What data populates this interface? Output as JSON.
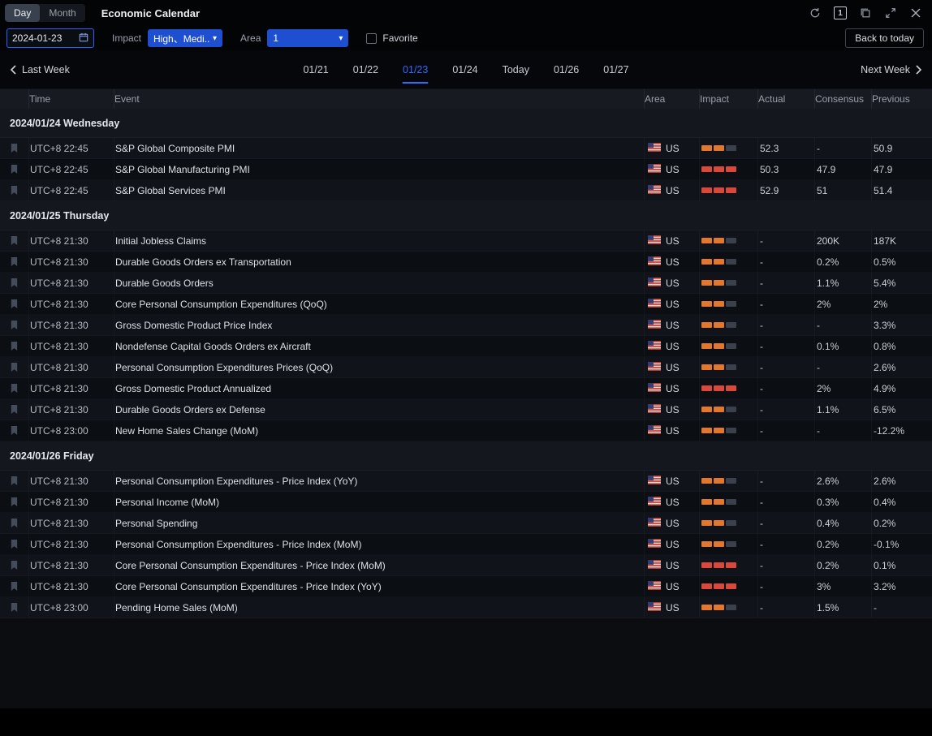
{
  "titlebar": {
    "day_label": "Day",
    "month_label": "Month",
    "title": "Economic Calendar",
    "layout_count": "1"
  },
  "filters": {
    "date_value": "2024-01-23",
    "impact_label": "Impact",
    "impact_value": "High、Medi...",
    "area_label": "Area",
    "area_value": "1",
    "favorite_label": "Favorite",
    "favorite_checked": false,
    "back_to_today_label": "Back to today"
  },
  "week_nav": {
    "prev_label": "Last Week",
    "next_label": "Next Week",
    "tabs": [
      {
        "label": "01/21",
        "active": false
      },
      {
        "label": "01/22",
        "active": false
      },
      {
        "label": "01/23",
        "active": true
      },
      {
        "label": "01/24",
        "active": false
      },
      {
        "label": "Today",
        "active": false
      },
      {
        "label": "01/26",
        "active": false
      },
      {
        "label": "01/27",
        "active": false
      }
    ]
  },
  "icons": {
    "caret_down": "▾"
  },
  "colors": {
    "accent_blue": "#2962FF",
    "dropdown_blue": "#1E4FD1",
    "impact_medium": "#E2772E",
    "impact_high": "#D8493B",
    "impact_empty": "#3A404C"
  },
  "impact_levels": {
    "medium": [
      "#E2772E",
      "#E2772E",
      "#3A404C"
    ],
    "high": [
      "#D8493B",
      "#D8493B",
      "#D8493B"
    ]
  },
  "table": {
    "columns": [
      "Time",
      "Event",
      "Area",
      "Impact",
      "Actual",
      "Consensus",
      "Previous"
    ],
    "sections": [
      {
        "date": "2024/01/24 Wednesday",
        "rows": [
          {
            "time": "UTC+8 22:45",
            "event": "S&P Global Composite PMI",
            "area": "US",
            "impact": "medium",
            "actual": "52.3",
            "consensus": "-",
            "previous": "50.9"
          },
          {
            "time": "UTC+8 22:45",
            "event": "S&P Global Manufacturing PMI",
            "area": "US",
            "impact": "high",
            "actual": "50.3",
            "consensus": "47.9",
            "previous": "47.9"
          },
          {
            "time": "UTC+8 22:45",
            "event": "S&P Global Services PMI",
            "area": "US",
            "impact": "high",
            "actual": "52.9",
            "consensus": "51",
            "previous": "51.4"
          }
        ]
      },
      {
        "date": "2024/01/25 Thursday",
        "rows": [
          {
            "time": "UTC+8 21:30",
            "event": "Initial Jobless Claims",
            "area": "US",
            "impact": "medium",
            "actual": "-",
            "consensus": "200K",
            "previous": "187K"
          },
          {
            "time": "UTC+8 21:30",
            "event": "Durable Goods Orders ex Transportation",
            "area": "US",
            "impact": "medium",
            "actual": "-",
            "consensus": "0.2%",
            "previous": "0.5%"
          },
          {
            "time": "UTC+8 21:30",
            "event": "Durable Goods Orders",
            "area": "US",
            "impact": "medium",
            "actual": "-",
            "consensus": "1.1%",
            "previous": "5.4%"
          },
          {
            "time": "UTC+8 21:30",
            "event": "Core Personal Consumption Expenditures (QoQ)",
            "area": "US",
            "impact": "medium",
            "actual": "-",
            "consensus": "2%",
            "previous": "2%"
          },
          {
            "time": "UTC+8 21:30",
            "event": "Gross Domestic Product Price Index",
            "area": "US",
            "impact": "medium",
            "actual": "-",
            "consensus": "-",
            "previous": "3.3%"
          },
          {
            "time": "UTC+8 21:30",
            "event": "Nondefense Capital Goods Orders ex Aircraft",
            "area": "US",
            "impact": "medium",
            "actual": "-",
            "consensus": "0.1%",
            "previous": "0.8%"
          },
          {
            "time": "UTC+8 21:30",
            "event": "Personal Consumption Expenditures Prices (QoQ)",
            "area": "US",
            "impact": "medium",
            "actual": "-",
            "consensus": "-",
            "previous": "2.6%"
          },
          {
            "time": "UTC+8 21:30",
            "event": "Gross Domestic Product Annualized",
            "area": "US",
            "impact": "high",
            "actual": "-",
            "consensus": "2%",
            "previous": "4.9%"
          },
          {
            "time": "UTC+8 21:30",
            "event": "Durable Goods Orders ex Defense",
            "area": "US",
            "impact": "medium",
            "actual": "-",
            "consensus": "1.1%",
            "previous": "6.5%"
          },
          {
            "time": "UTC+8 23:00",
            "event": "New Home Sales Change (MoM)",
            "area": "US",
            "impact": "medium",
            "actual": "-",
            "consensus": "-",
            "previous": "-12.2%"
          }
        ]
      },
      {
        "date": "2024/01/26 Friday",
        "rows": [
          {
            "time": "UTC+8 21:30",
            "event": "Personal Consumption Expenditures - Price Index (YoY)",
            "area": "US",
            "impact": "medium",
            "actual": "-",
            "consensus": "2.6%",
            "previous": "2.6%"
          },
          {
            "time": "UTC+8 21:30",
            "event": "Personal Income (MoM)",
            "area": "US",
            "impact": "medium",
            "actual": "-",
            "consensus": "0.3%",
            "previous": "0.4%"
          },
          {
            "time": "UTC+8 21:30",
            "event": "Personal Spending",
            "area": "US",
            "impact": "medium",
            "actual": "-",
            "consensus": "0.4%",
            "previous": "0.2%"
          },
          {
            "time": "UTC+8 21:30",
            "event": "Personal Consumption Expenditures - Price Index (MoM)",
            "area": "US",
            "impact": "medium",
            "actual": "-",
            "consensus": "0.2%",
            "previous": "-0.1%"
          },
          {
            "time": "UTC+8 21:30",
            "event": "Core Personal Consumption Expenditures - Price Index (MoM)",
            "area": "US",
            "impact": "high",
            "actual": "-",
            "consensus": "0.2%",
            "previous": "0.1%"
          },
          {
            "time": "UTC+8 21:30",
            "event": "Core Personal Consumption Expenditures - Price Index (YoY)",
            "area": "US",
            "impact": "high",
            "actual": "-",
            "consensus": "3%",
            "previous": "3.2%"
          },
          {
            "time": "UTC+8 23:00",
            "event": "Pending Home Sales (MoM)",
            "area": "US",
            "impact": "medium",
            "actual": "-",
            "consensus": "1.5%",
            "previous": "-"
          }
        ]
      }
    ]
  }
}
